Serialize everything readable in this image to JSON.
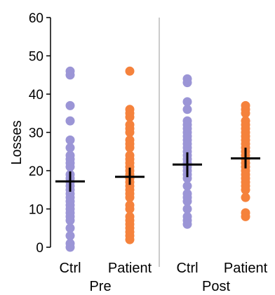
{
  "chart_data": {
    "type": "scatter",
    "title": "",
    "ylabel": "Losses",
    "ylim": [
      0,
      60
    ],
    "yticks": [
      0,
      10,
      20,
      30,
      40,
      50,
      60
    ],
    "grid": false,
    "categories": [
      "Ctrl",
      "Patient",
      "Ctrl",
      "Patient"
    ],
    "group_labels": [
      "Pre",
      "Post"
    ],
    "colors": {
      "Ctrl": "#9b95d6",
      "Patient": "#f5823c",
      "summary": "#000000",
      "divider": "#bbbbbb"
    },
    "series": [
      {
        "category": "Ctrl",
        "group": "Pre",
        "values": [
          46,
          45,
          37,
          33,
          28,
          26,
          24,
          23,
          22,
          21,
          19,
          18,
          17,
          16,
          15,
          14,
          13,
          12,
          11,
          10,
          9,
          8,
          7,
          5,
          3,
          1,
          0
        ],
        "mean": 17.2,
        "sem_low": 14.5,
        "sem_high": 19.8
      },
      {
        "category": "Patient",
        "group": "Pre",
        "values": [
          46,
          36,
          35,
          34,
          32,
          31,
          30,
          28,
          27,
          26,
          24,
          23,
          22,
          21,
          20,
          19,
          18,
          17,
          16,
          15,
          14,
          13,
          11,
          10,
          8,
          7,
          6,
          5,
          4,
          3,
          2
        ],
        "mean": 18.4,
        "sem_low": 16.3,
        "sem_high": 20.8
      },
      {
        "category": "Ctrl",
        "group": "Post",
        "values": [
          44,
          43,
          38,
          36,
          33,
          32,
          31,
          30,
          29,
          28,
          27,
          26,
          25,
          24,
          23,
          22,
          21,
          20,
          19,
          18,
          16,
          14,
          13,
          12,
          10,
          8,
          7,
          6
        ],
        "mean": 21.6,
        "sem_low": 18.3,
        "sem_high": 24.8
      },
      {
        "category": "Patient",
        "group": "Post",
        "values": [
          37,
          36,
          35,
          33,
          32,
          31,
          30,
          29,
          28,
          27,
          26,
          25,
          24,
          23,
          22,
          21,
          20,
          19,
          18,
          17,
          16,
          15,
          13,
          9,
          8
        ],
        "mean": 23.2,
        "sem_low": 20.6,
        "sem_high": 26.0
      }
    ]
  }
}
